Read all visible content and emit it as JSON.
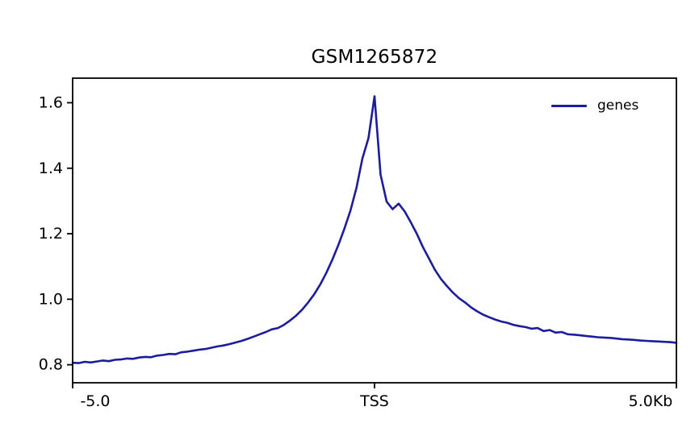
{
  "figure": {
    "background": "#ffffff"
  },
  "chart_data": {
    "type": "line",
    "title": "GSM1265872",
    "xlabel": "",
    "ylabel": "",
    "grid": false,
    "legend_position": "upper right",
    "xlim": [
      -5.0,
      5.0
    ],
    "ylim": [
      0.745,
      1.675
    ],
    "x_ticks": [
      {
        "pos": -5.0,
        "label": "-5.0"
      },
      {
        "pos": 0.0,
        "label": "TSS"
      },
      {
        "pos": 5.0,
        "label": "5.0Kb"
      }
    ],
    "y_ticks": [
      {
        "pos": 0.8,
        "label": "0.8"
      },
      {
        "pos": 1.0,
        "label": "1.0"
      },
      {
        "pos": 1.2,
        "label": "1.2"
      },
      {
        "pos": 1.4,
        "label": "1.4"
      },
      {
        "pos": 1.6,
        "label": "1.6"
      }
    ],
    "x": [
      -5.0,
      -4.9,
      -4.8,
      -4.7,
      -4.6,
      -4.5,
      -4.4,
      -4.3,
      -4.2,
      -4.1,
      -4.0,
      -3.9,
      -3.8,
      -3.7,
      -3.6,
      -3.5,
      -3.4,
      -3.3,
      -3.2,
      -3.1,
      -3.0,
      -2.9,
      -2.8,
      -2.7,
      -2.6,
      -2.5,
      -2.4,
      -2.3,
      -2.2,
      -2.1,
      -2.0,
      -1.9,
      -1.8,
      -1.7,
      -1.6,
      -1.5,
      -1.4,
      -1.3,
      -1.2,
      -1.1,
      -1.0,
      -0.9,
      -0.8,
      -0.7,
      -0.6,
      -0.5,
      -0.4,
      -0.3,
      -0.2,
      -0.1,
      0.0,
      0.1,
      0.2,
      0.3,
      0.4,
      0.5,
      0.6,
      0.7,
      0.8,
      0.9,
      1.0,
      1.1,
      1.2,
      1.3,
      1.4,
      1.5,
      1.6,
      1.7,
      1.8,
      1.9,
      2.0,
      2.1,
      2.2,
      2.3,
      2.4,
      2.5,
      2.6,
      2.7,
      2.8,
      2.9,
      3.0,
      3.1,
      3.2,
      3.3,
      3.4,
      3.5,
      3.6,
      3.7,
      3.8,
      3.9,
      4.0,
      4.1,
      4.2,
      4.3,
      4.4,
      4.5,
      4.6,
      4.7,
      4.8,
      4.9,
      5.0
    ],
    "series": [
      {
        "name": "genes",
        "color": "#1c1c9c",
        "values": [
          0.806,
          0.805,
          0.809,
          0.807,
          0.81,
          0.813,
          0.811,
          0.815,
          0.816,
          0.819,
          0.818,
          0.822,
          0.824,
          0.823,
          0.828,
          0.83,
          0.833,
          0.832,
          0.838,
          0.84,
          0.843,
          0.846,
          0.848,
          0.852,
          0.856,
          0.859,
          0.863,
          0.868,
          0.873,
          0.879,
          0.886,
          0.893,
          0.9,
          0.908,
          0.912,
          0.922,
          0.935,
          0.95,
          0.968,
          0.99,
          1.015,
          1.045,
          1.08,
          1.12,
          1.165,
          1.215,
          1.27,
          1.34,
          1.43,
          1.492,
          1.62,
          1.38,
          1.298,
          1.275,
          1.292,
          1.268,
          1.235,
          1.2,
          1.16,
          1.125,
          1.09,
          1.062,
          1.04,
          1.02,
          1.003,
          0.99,
          0.975,
          0.963,
          0.953,
          0.945,
          0.938,
          0.932,
          0.928,
          0.922,
          0.918,
          0.915,
          0.91,
          0.912,
          0.903,
          0.906,
          0.898,
          0.9,
          0.893,
          0.892,
          0.89,
          0.888,
          0.886,
          0.884,
          0.883,
          0.882,
          0.88,
          0.878,
          0.877,
          0.876,
          0.874,
          0.873,
          0.872,
          0.871,
          0.87,
          0.869,
          0.867
        ]
      }
    ]
  }
}
